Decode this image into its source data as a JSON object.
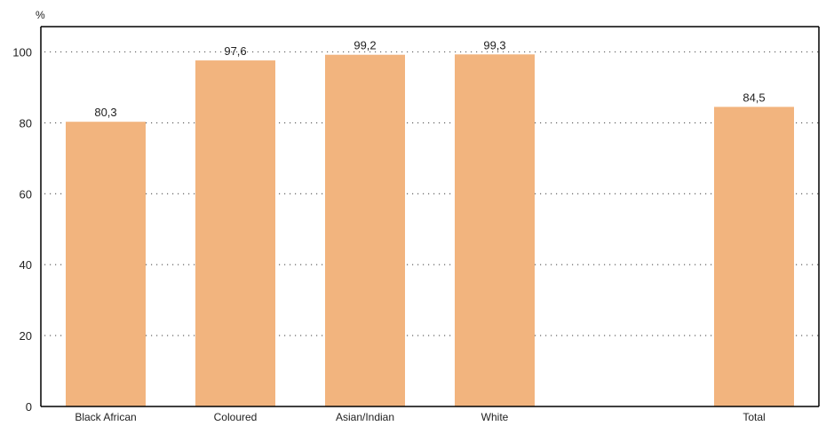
{
  "chart_data": {
    "type": "bar",
    "title": "",
    "ylabel": "%",
    "xlabel": "",
    "categories": [
      "Black African",
      "Coloured",
      "Asian/Indian",
      "White",
      "",
      "Total"
    ],
    "values": [
      80.3,
      97.6,
      99.2,
      99.3,
      null,
      84.5
    ],
    "value_labels": [
      "80,3",
      "97,6",
      "99,2",
      "99,3",
      "",
      "84,5"
    ],
    "ylim": [
      0,
      100
    ],
    "yticks": [
      0,
      20,
      40,
      60,
      80,
      100
    ],
    "ytick_labels": [
      "0",
      "20",
      "40",
      "60",
      "80",
      "100"
    ],
    "grid": "horizontal-dotted",
    "legend": "none",
    "bar_color": "#f2b47e"
  }
}
